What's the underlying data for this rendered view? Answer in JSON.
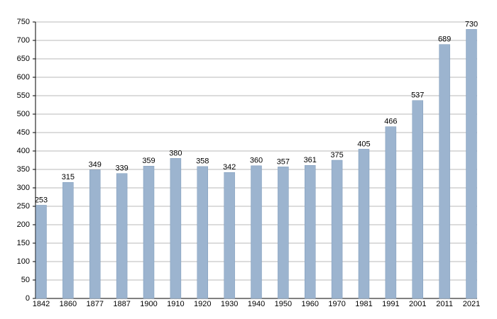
{
  "chart_data": {
    "type": "bar",
    "categories": [
      "1842",
      "1860",
      "1877",
      "1887",
      "1900",
      "1910",
      "1920",
      "1930",
      "1940",
      "1950",
      "1960",
      "1970",
      "1981",
      "1991",
      "2001",
      "2011",
      "2021"
    ],
    "values": [
      253,
      315,
      349,
      339,
      359,
      380,
      358,
      342,
      360,
      357,
      361,
      375,
      405,
      466,
      537,
      689,
      730
    ],
    "color": "#9cb4cf",
    "ylim": [
      0,
      750
    ],
    "yticks": [
      0,
      50,
      100,
      150,
      200,
      250,
      300,
      350,
      400,
      450,
      500,
      550,
      600,
      650,
      700,
      750
    ],
    "grid": true
  }
}
